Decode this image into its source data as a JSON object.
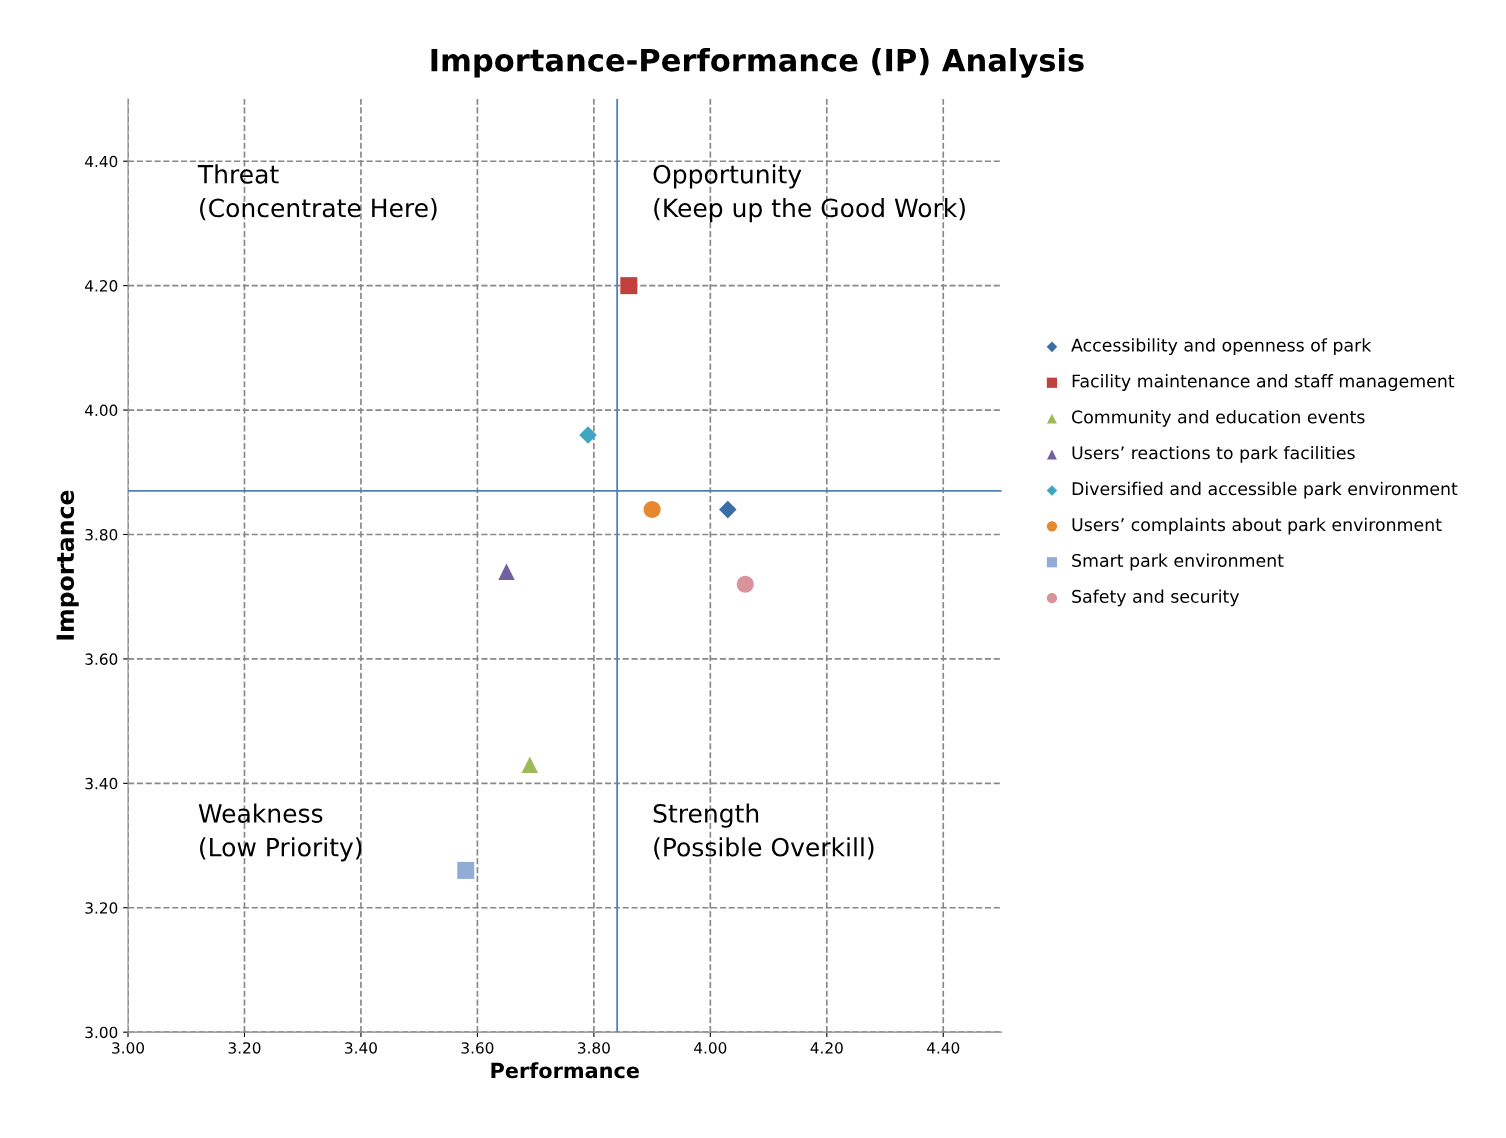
{
  "chart_data": {
    "type": "scatter",
    "title": "Importance-Performance (IP) Analysis",
    "xlabel": "Performance",
    "ylabel": "Importance",
    "xlim": [
      3.0,
      4.5
    ],
    "ylim": [
      3.0,
      4.5
    ],
    "xticks": [
      {
        "value": 3.0,
        "label": "3.00"
      },
      {
        "value": 3.2,
        "label": "3.20"
      },
      {
        "value": 3.4,
        "label": "3.40"
      },
      {
        "value": 3.6,
        "label": "3.60"
      },
      {
        "value": 3.8,
        "label": "3.80"
      },
      {
        "value": 4.0,
        "label": "4.00"
      },
      {
        "value": 4.2,
        "label": "4.20"
      },
      {
        "value": 4.4,
        "label": "4.40"
      }
    ],
    "yticks": [
      {
        "value": 3.0,
        "label": "3.00"
      },
      {
        "value": 3.2,
        "label": "3.20"
      },
      {
        "value": 3.4,
        "label": "3.40"
      },
      {
        "value": 3.6,
        "label": "3.60"
      },
      {
        "value": 3.8,
        "label": "3.80"
      },
      {
        "value": 4.0,
        "label": "4.00"
      },
      {
        "value": 4.2,
        "label": "4.20"
      },
      {
        "value": 4.4,
        "label": "4.40"
      }
    ],
    "grid": true,
    "legend": "right",
    "ref_lines": [
      {
        "axis": "x",
        "value": 3.84,
        "color": "#4f81bd"
      },
      {
        "axis": "y",
        "value": 3.87,
        "color": "#4f81bd"
      }
    ],
    "annotations": [
      "Threat\n(Concentrate Here)",
      "Opportunity\n(Keep up the Good Work)",
      "Weakness\n(Low Priority)",
      "Strength\n(Possible Overkill)"
    ],
    "series": [
      {
        "name": "Accessibility and openness of park",
        "color": "#3a6ea5",
        "marker": "diamond",
        "x": [
          4.03
        ],
        "values": [
          3.84
        ]
      },
      {
        "name": "Facility maintenance and staff management",
        "color": "#c0403d",
        "marker": "square",
        "x": [
          3.86
        ],
        "values": [
          4.2
        ]
      },
      {
        "name": "Community and education events",
        "color": "#9bbb59",
        "marker": "triangle",
        "x": [
          3.69
        ],
        "values": [
          3.43
        ]
      },
      {
        "name": "Users’ reactions to park facilities",
        "color": "#7060a0",
        "marker": "triangle",
        "x": [
          3.65
        ],
        "values": [
          3.74
        ]
      },
      {
        "name": "Diversified and accessible park environment",
        "color": "#3fa5c0",
        "marker": "diamond",
        "x": [
          3.79
        ],
        "values": [
          3.96
        ]
      },
      {
        "name": "Users’ complaints about park environment",
        "color": "#e8882e",
        "marker": "circle",
        "x": [
          3.9
        ],
        "values": [
          3.84
        ]
      },
      {
        "name": "Smart park environment",
        "color": "#93acd6",
        "marker": "square",
        "x": [
          3.58
        ],
        "values": [
          3.26
        ]
      },
      {
        "name": "Safety and security",
        "color": "#d9939a",
        "marker": "circle",
        "x": [
          4.06
        ],
        "values": [
          3.72
        ]
      }
    ]
  }
}
